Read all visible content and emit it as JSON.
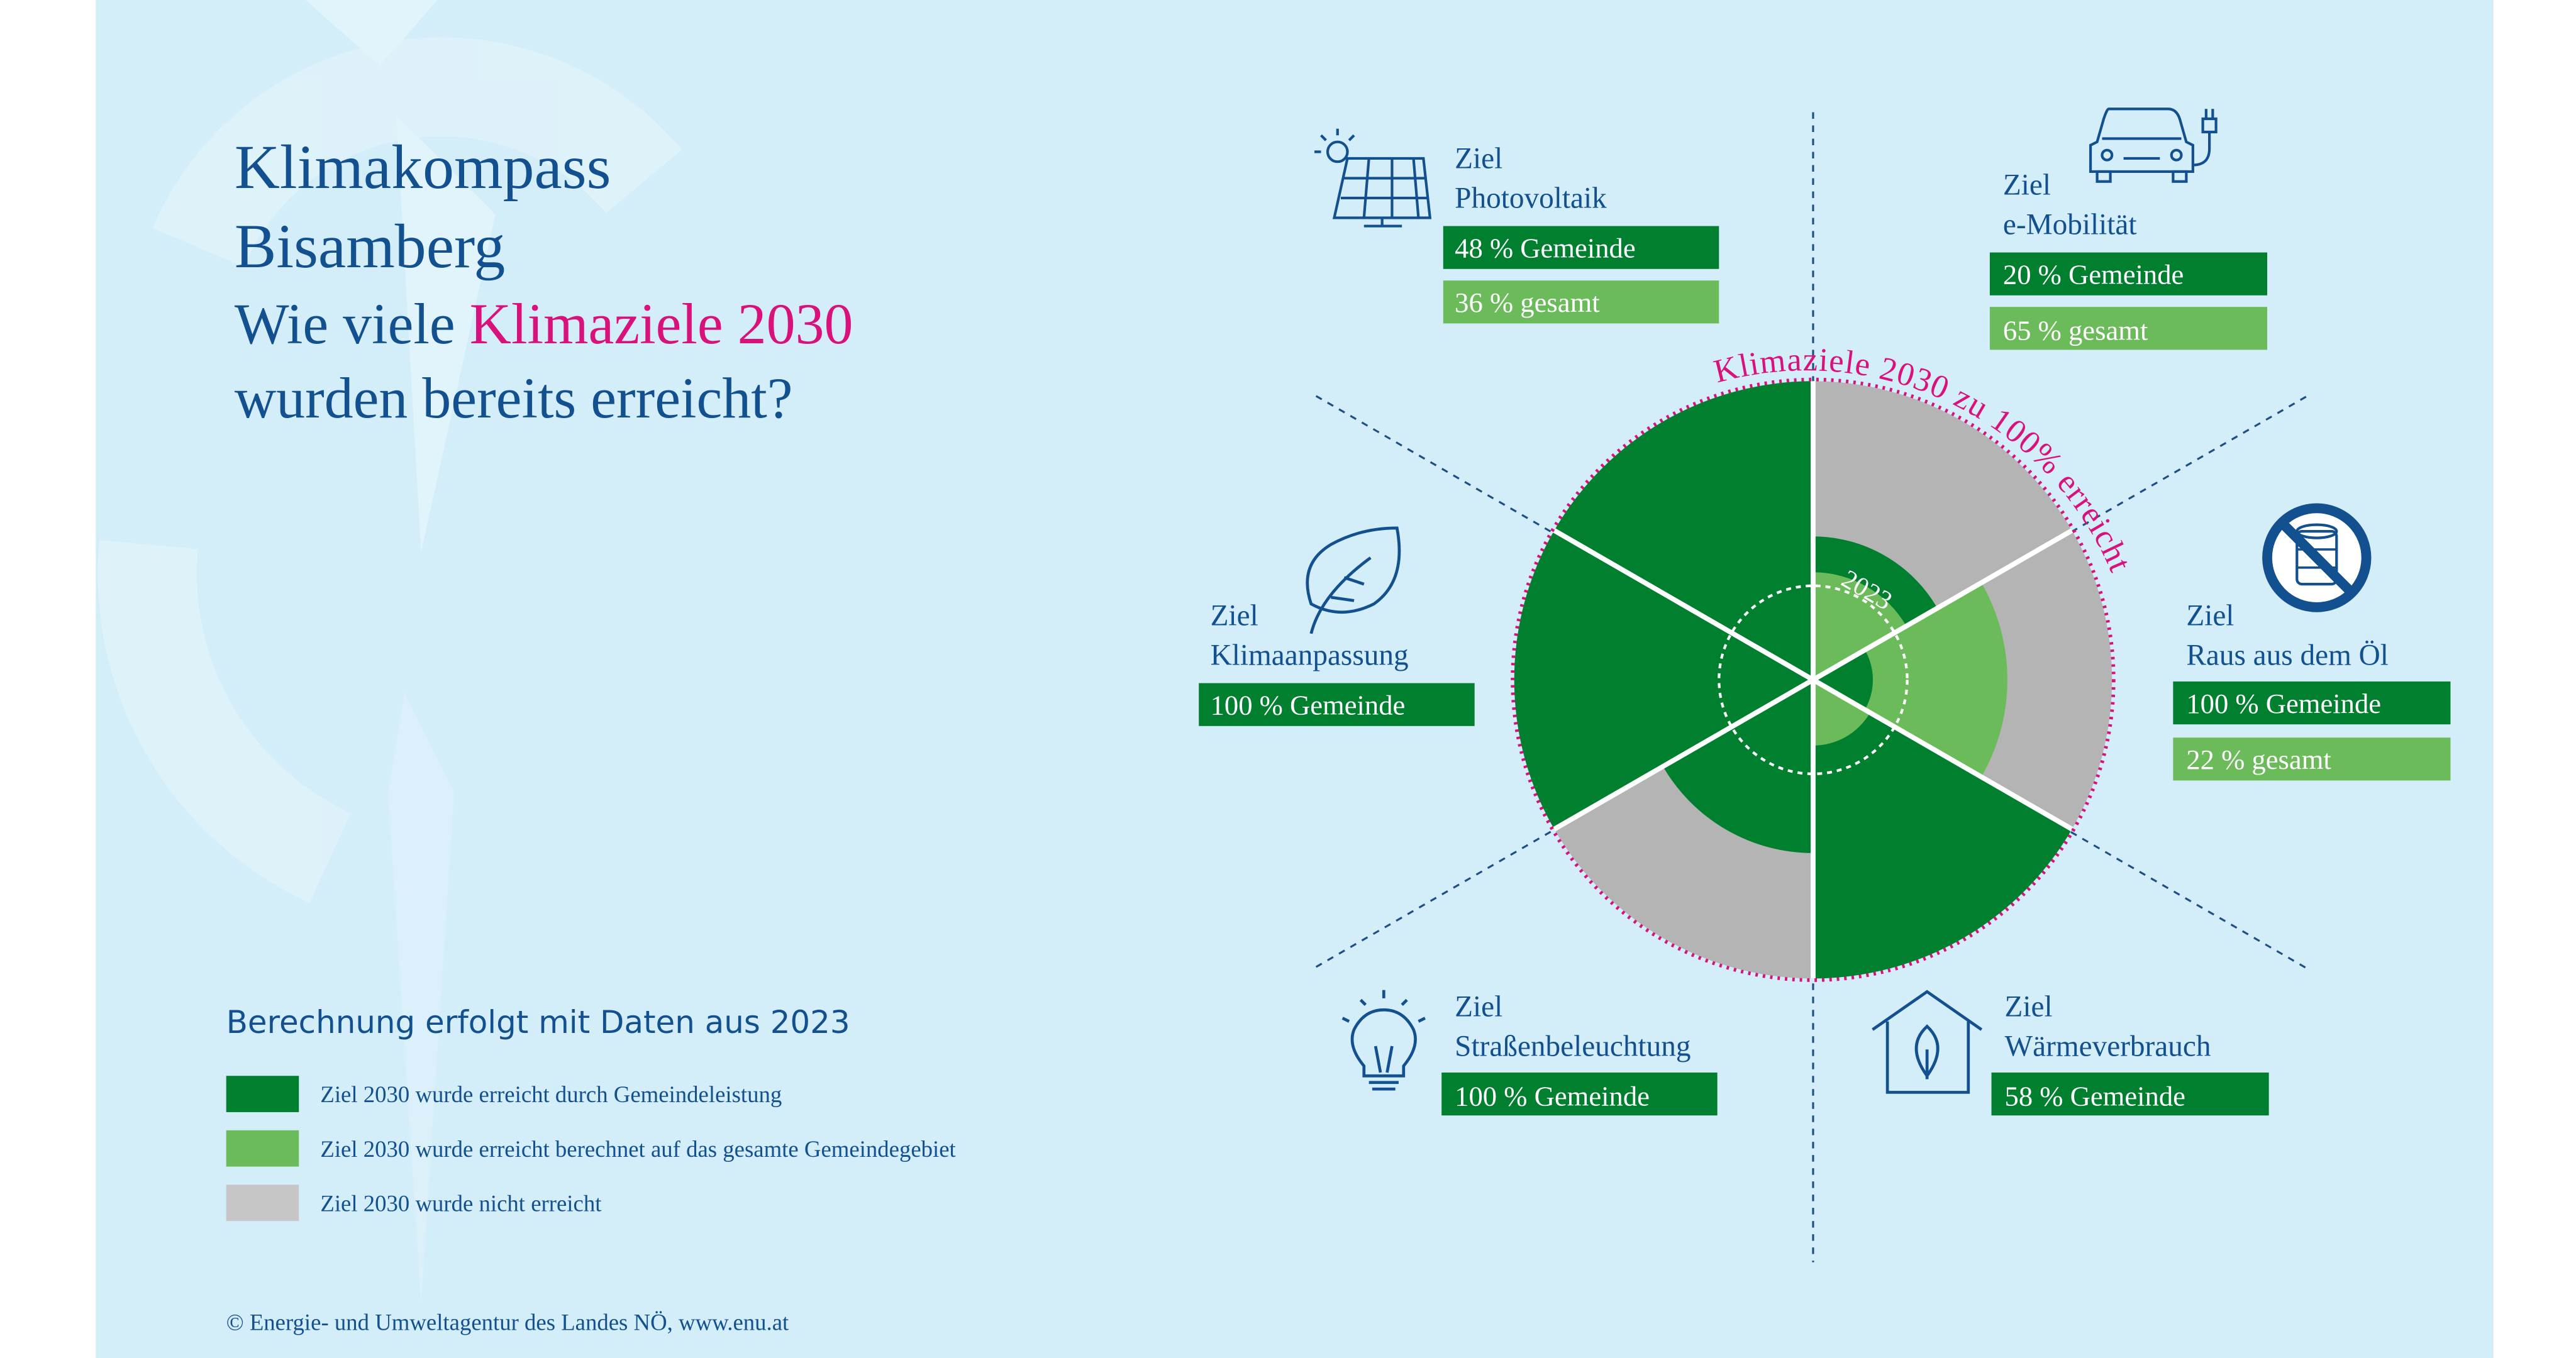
{
  "title": {
    "line1": "Klimakompass",
    "line2": "Bisamberg",
    "line3_pre": "Wie viele ",
    "line3_highlight": "Klimaziele 2030",
    "line4": "wurden bereits erreicht?"
  },
  "ring_label": "Klimaziele 2030 zu 100% erreicht",
  "center_label": "2023",
  "goals": [
    {
      "ziel": "Ziel",
      "name": "Photovoltaik",
      "gemeinde": "48 % Gemeinde",
      "gesamt": "36 % gesamt",
      "icon": "solar-panel-icon"
    },
    {
      "ziel": "Ziel",
      "name": "e-Mobilität",
      "gemeinde": "20 % Gemeinde",
      "gesamt": "65 % gesamt",
      "icon": "electric-car-icon"
    },
    {
      "ziel": "Ziel",
      "name": "Raus aus dem Öl",
      "gemeinde": "100 % Gemeinde",
      "gesamt": "22 % gesamt",
      "icon": "no-oil-barrel-icon"
    },
    {
      "ziel": "Ziel",
      "name": "Wärmeverbrauch",
      "gemeinde": "58 % Gemeinde",
      "icon": "house-leaf-icon"
    },
    {
      "ziel": "Ziel",
      "name": "Straßenbeleuchtung",
      "gemeinde": "100 % Gemeinde",
      "icon": "light-bulb-icon"
    },
    {
      "ziel": "Ziel",
      "name": "Klimaanpassung",
      "gemeinde": "100 % Gemeinde",
      "icon": "leaf-icon"
    }
  ],
  "legend": {
    "title": "Berechnung erfolgt mit Daten aus 2023",
    "items": [
      {
        "label": "Ziel 2030 wurde erreicht durch Gemeindeleistung",
        "color": "#00802f"
      },
      {
        "label": "Ziel 2030 wurde erreicht berechnet auf das gesamte Gemeindegebiet",
        "color": "#6cbb5a"
      },
      {
        "label": "Ziel 2030 wurde nicht erreicht",
        "color": "#c6c6c6"
      }
    ]
  },
  "footer": "© Energie- und Umweltagentur des Landes NÖ, www.enu.at",
  "colors": {
    "background": "#d3edf9",
    "title_blue": "#12508f",
    "highlight_pink": "#d9117a",
    "dark_green": "#00802f",
    "light_green": "#6cbb5a",
    "grey": "#b4b4b4"
  },
  "chart_data": {
    "type": "polar-area",
    "scale": "percent of 2030 target",
    "rlim": [
      0,
      100
    ],
    "series": [
      {
        "name": "Gemeinde",
        "values": [
          48,
          20,
          100,
          58,
          100,
          100
        ]
      },
      {
        "name": "gesamt",
        "values": [
          36,
          65,
          22,
          null,
          null,
          null
        ]
      }
    ]
  }
}
